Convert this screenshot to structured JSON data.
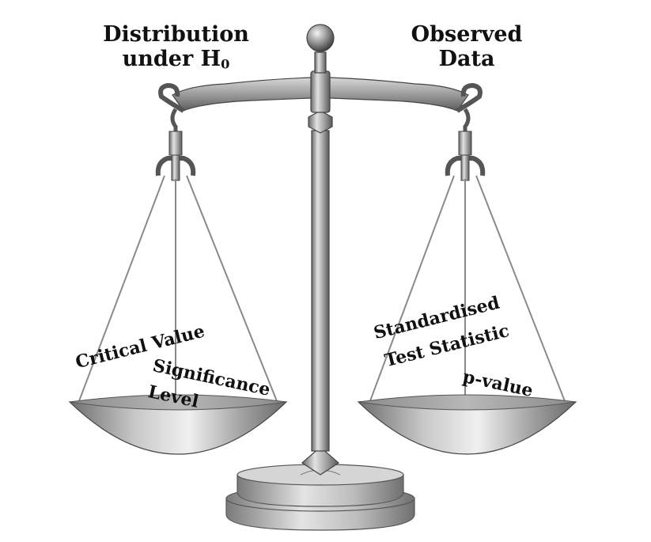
{
  "headings": {
    "left": {
      "line1": "Distribution",
      "line2_prefix": "under H",
      "line2_sub": "0"
    },
    "right": {
      "line1": "Observed",
      "line2": "Data"
    }
  },
  "left_pan": {
    "item1": "Critical Value",
    "item2_line1": "Significance",
    "item2_line2": "Level"
  },
  "right_pan": {
    "item1_line1": "Standardised",
    "item1_line2": "Test Statistic",
    "item2": "p-value"
  },
  "colors": {
    "metal_dark": "#5c5c5c",
    "metal_mid": "#9a9a9a",
    "metal_light": "#e6e6e6",
    "text": "#111111"
  }
}
